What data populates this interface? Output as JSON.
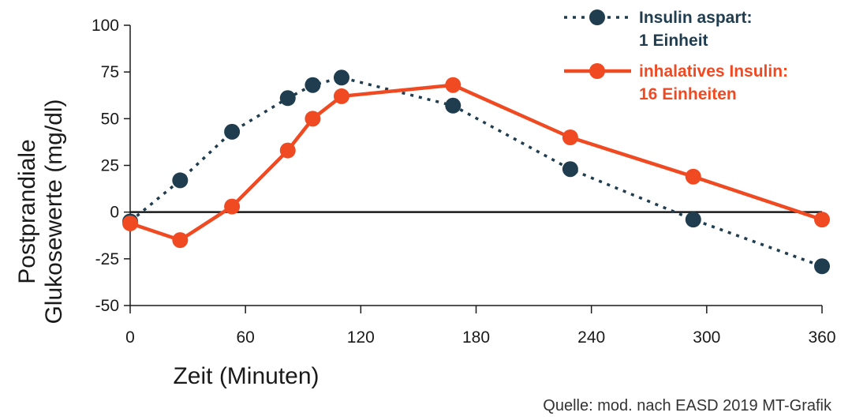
{
  "chart_data": {
    "type": "line",
    "xlabel": "Zeit (Minuten)",
    "ylabel_line1": "Postprandiale",
    "ylabel_line2": "Glukosewerte (mg/dl)",
    "xlim": [
      0,
      360
    ],
    "ylim": [
      -50,
      100
    ],
    "xticks": [
      0,
      60,
      120,
      180,
      240,
      300,
      360
    ],
    "yticks": [
      100,
      75,
      50,
      25,
      0,
      -25,
      -50
    ],
    "zero_line": true,
    "legend_position": "top-right",
    "series": [
      {
        "name_line1": "Insulin aspart:",
        "name_line2": "1 Einheit",
        "color": "#1f3d4f",
        "style": "dotted",
        "x": [
          0,
          26,
          53,
          82,
          95,
          110,
          168,
          229,
          293,
          360
        ],
        "y": [
          -5,
          17,
          43,
          61,
          68,
          72,
          57,
          23,
          -4,
          -29
        ]
      },
      {
        "name_line1": "inhalatives Insulin:",
        "name_line2": "16 Einheiten",
        "color": "#f04a23",
        "style": "solid",
        "x": [
          0,
          26,
          53,
          82,
          95,
          110,
          168,
          229,
          293,
          360
        ],
        "y": [
          -6,
          -15,
          3,
          33,
          50,
          62,
          68,
          40,
          19,
          -4
        ]
      }
    ]
  },
  "source": "Quelle: mod. nach EASD 2019   MT-Grafik"
}
